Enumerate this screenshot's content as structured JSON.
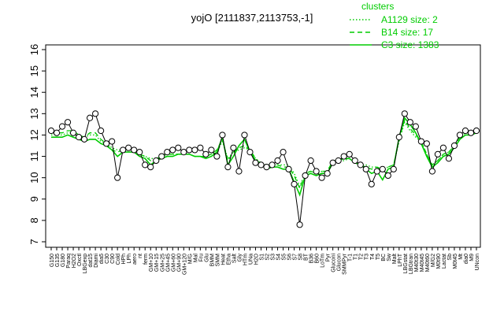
{
  "chart_data": {
    "type": "line",
    "title": "yojO [2111837,2113753,-1]",
    "xlabel": "",
    "ylabel": "",
    "ylim": [
      7,
      16
    ],
    "yticks": [
      7,
      8,
      9,
      10,
      11,
      12,
      13,
      14,
      15,
      16
    ],
    "grid": false,
    "legend": {
      "title": "clusters",
      "placement": "top-right",
      "color": "#00cc00",
      "entries": [
        {
          "label": "A1129 size: 2",
          "style": "dotted"
        },
        {
          "label": "B14 size: 17",
          "style": "dashed"
        },
        {
          "label": "C3 size: 1383",
          "style": "solid"
        }
      ]
    },
    "tick_labels": [
      "G150",
      "G135",
      "G180",
      "Paraq",
      "H2O2",
      "Oxctl",
      "LBGexp",
      "dat15",
      "Diami",
      "dia5",
      "C30",
      "C90",
      "Cold",
      "HPh",
      "LPh",
      "aero",
      "nt",
      "ferm",
      "GM+10",
      "GM+15",
      "GM+25",
      "GM+45",
      "GM+60",
      "GM+90",
      "GM+120",
      "M/G",
      "Mal",
      "Fru",
      "Glu",
      "BMM",
      "SMM",
      "Heat",
      "Etha",
      "Salt",
      "Gly",
      "HTm",
      "UNa",
      "H2O",
      "S1",
      "S2",
      "S3",
      "S4",
      "S5",
      "S6",
      "S7",
      "S8",
      "BT",
      "B36",
      "B60",
      "LoTm",
      "Pyr",
      "Gluconi",
      "Glucon",
      "SMMPyr",
      "T-1",
      "T1",
      "T2",
      "T3",
      "T4",
      "T5",
      "BC",
      "Sw",
      "Malt",
      "LPhT",
      "LBGstat",
      "LBGtran",
      "M40t30",
      "M40t45",
      "M40t60",
      "M/G2",
      "M0t90",
      "Lactat",
      "Sb",
      "M0t45",
      "Mt",
      "dia0",
      "M9",
      "UNcon"
    ],
    "series": [
      {
        "name": "",
        "role": "profile (A1129)",
        "style": "dotted",
        "color": "#00cc00",
        "values": [
          12.0,
          12.0,
          12.0,
          12.1,
          12.1,
          11.9,
          11.9,
          12.0,
          12.0,
          11.7,
          11.6,
          11.4,
          11.3,
          11.3,
          11.3,
          11.3,
          11.1,
          11.0,
          10.9,
          10.9,
          11.0,
          11.1,
          11.1,
          11.1,
          11.1,
          11.1,
          11.0,
          11.0,
          11.0,
          11.1,
          11.2,
          11.7,
          10.9,
          11.2,
          11.3,
          11.4,
          11.3,
          10.9,
          10.7,
          10.6,
          10.6,
          10.6,
          10.6,
          10.6,
          10.2,
          9.6,
          10.2,
          10.3,
          10.2,
          10.3,
          10.3,
          10.8,
          10.8,
          10.8,
          10.9,
          10.7,
          10.6,
          10.6,
          10.5,
          10.5,
          10.4,
          10.5,
          10.6,
          11.7,
          12.6,
          12.2,
          11.9,
          11.7,
          11.1,
          10.6,
          10.8,
          11.1,
          11.2,
          11.5,
          11.9,
          12.0,
          12.0,
          12.1
        ]
      },
      {
        "name": "",
        "role": "profile (B14)",
        "style": "dashed",
        "color": "#00cc00",
        "values": [
          12.1,
          12.1,
          12.1,
          12.2,
          12.2,
          12.0,
          11.9,
          12.1,
          12.1,
          11.8,
          11.6,
          11.3,
          11.2,
          11.3,
          11.3,
          11.3,
          11.1,
          11.0,
          10.8,
          10.9,
          11.0,
          11.1,
          11.1,
          11.1,
          11.1,
          11.1,
          11.0,
          11.0,
          11.0,
          11.1,
          11.3,
          11.8,
          10.8,
          11.2,
          11.4,
          11.5,
          11.3,
          10.9,
          10.6,
          10.5,
          10.6,
          10.6,
          10.5,
          10.5,
          10.1,
          9.5,
          10.2,
          10.3,
          10.2,
          10.3,
          10.3,
          10.8,
          10.8,
          10.9,
          10.9,
          10.7,
          10.6,
          10.5,
          10.4,
          10.5,
          10.3,
          10.5,
          10.6,
          11.8,
          12.7,
          12.3,
          12.0,
          11.7,
          11.1,
          10.6,
          10.8,
          11.1,
          11.2,
          11.5,
          11.9,
          12.1,
          12.1,
          12.2
        ]
      },
      {
        "name": "",
        "role": "profile (C3)",
        "style": "solid",
        "color": "#00cc00",
        "values": [
          11.9,
          11.9,
          11.9,
          12.0,
          11.9,
          11.8,
          11.7,
          11.8,
          11.8,
          11.6,
          11.5,
          11.3,
          11.0,
          11.2,
          11.2,
          11.2,
          11.0,
          10.9,
          10.6,
          10.8,
          10.9,
          11.0,
          11.0,
          11.1,
          11.1,
          11.1,
          11.0,
          11.0,
          10.9,
          11.0,
          11.2,
          11.9,
          10.6,
          11.0,
          11.5,
          11.8,
          11.2,
          10.8,
          10.6,
          10.4,
          10.5,
          10.5,
          10.4,
          10.4,
          9.8,
          9.2,
          10.1,
          10.2,
          10.1,
          10.2,
          10.2,
          10.7,
          10.8,
          10.9,
          10.9,
          10.7,
          10.6,
          10.4,
          10.2,
          10.3,
          9.9,
          10.4,
          10.5,
          11.9,
          12.8,
          12.5,
          12.1,
          11.6,
          11.0,
          10.5,
          10.7,
          11.0,
          11.1,
          11.4,
          11.8,
          12.0,
          12.0,
          12.1
        ]
      },
      {
        "name": "",
        "role": "gene",
        "style": "line-with-circles",
        "color": "#000000",
        "values": [
          12.2,
          12.1,
          12.4,
          12.6,
          12.1,
          11.9,
          11.8,
          12.8,
          13.0,
          12.2,
          11.6,
          11.7,
          10.0,
          11.3,
          11.4,
          11.3,
          11.2,
          10.6,
          10.5,
          10.8,
          11.0,
          11.2,
          11.3,
          11.4,
          11.2,
          11.3,
          11.3,
          11.4,
          11.1,
          11.3,
          11.0,
          12.0,
          10.5,
          11.4,
          10.3,
          12.0,
          11.2,
          10.7,
          10.6,
          10.5,
          10.6,
          10.8,
          11.2,
          10.4,
          9.7,
          7.8,
          10.1,
          10.8,
          10.3,
          10.0,
          10.2,
          10.7,
          10.8,
          11.0,
          11.1,
          10.8,
          10.6,
          10.4,
          9.7,
          10.3,
          10.4,
          10.1,
          10.4,
          11.9,
          13.0,
          12.6,
          12.4,
          11.7,
          11.6,
          10.3,
          11.1,
          11.4,
          10.9,
          11.5,
          12.0,
          12.2,
          12.1,
          12.2
        ]
      }
    ]
  }
}
